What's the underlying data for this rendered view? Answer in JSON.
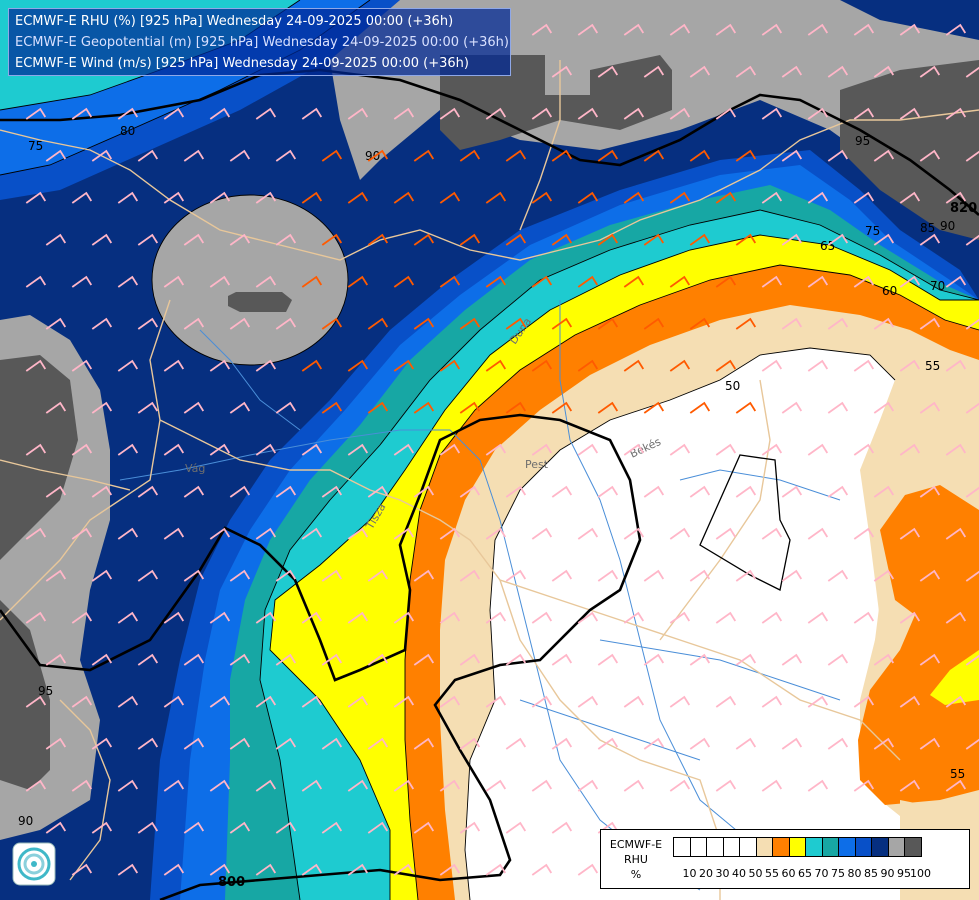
{
  "header": {
    "line1": "ECMWF-E RHU (%) [925 hPa] Wednesday 24-09-2025 00:00 (+36h)",
    "line2": "ECMWF-E Geopotential (m) [925 hPa] Wednesday 24-09-2025 00:00 (+36h)",
    "line3": "ECMWF-E Wind (m/s) [925 hPa] Wednesday 24-09-2025 00:00 (+36h)"
  },
  "legend": {
    "title_line1": "ECMWF-E",
    "title_line2": "RHU",
    "title_line3": "%",
    "colors": [
      "#ffffff",
      "#ffffff",
      "#ffffff",
      "#ffffff",
      "#ffffff",
      "#f5deb3",
      "#ff8000",
      "#ffff00",
      "#1ecbd0",
      "#17a7a4",
      "#0d6ee8",
      "#0850c8",
      "#062f80",
      "#a6a6a6",
      "#585858"
    ],
    "ticks": [
      "10",
      "20",
      "30",
      "40",
      "50",
      "55",
      "60",
      "65",
      "70",
      "75",
      "80",
      "85",
      "90",
      "95",
      "100"
    ]
  },
  "contour_labels": {
    "rhu": [
      "75",
      "80",
      "90",
      "95",
      "90",
      "85",
      "75",
      "70",
      "65",
      "60",
      "55",
      "50",
      "55",
      "95",
      "90"
    ],
    "geopotential": [
      "820",
      "800"
    ]
  },
  "place_labels": {
    "pest": "Pest",
    "bekes": "Békés",
    "tisza": "Tisza",
    "vag": "Vág",
    "duna": "Duna"
  },
  "colors": {
    "rhu_100": "#585858",
    "rhu_95": "#a6a6a6",
    "rhu_90": "#062f80",
    "rhu_85": "#0850c8",
    "rhu_80": "#0d6ee8",
    "rhu_75": "#17a7a4",
    "rhu_70": "#1ecbd0",
    "rhu_65": "#ffff00",
    "rhu_60": "#ff8000",
    "rhu_55": "#f5deb3",
    "rhu_50": "#ffffff",
    "border": "#e8c79a",
    "river": "#4a8ed8",
    "geopotential_line": "#000000",
    "wind_strong": "#ff5a00",
    "wind_weak": "#ffb6c8"
  }
}
